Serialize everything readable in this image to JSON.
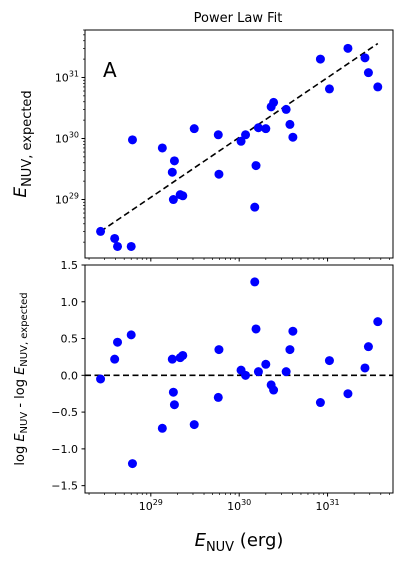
{
  "chart_data": [
    {
      "type": "scatter",
      "title": "Power Law Fit",
      "panel_label": "A",
      "xscale": "log",
      "yscale": "log",
      "xlim": [
        1.8e+28,
        5.5e+31
      ],
      "ylim": [
        1.1e+28,
        6e+31
      ],
      "ylabel_base": "E",
      "ylabel_sub": "NUV, expected",
      "x_ticks": [
        1e+29,
        1e+30,
        1e+31
      ],
      "y_ticks": [
        1e+29,
        1e+30,
        1e+31
      ],
      "marker_color": "#0000ff",
      "line_color": "#000000",
      "fit_line": {
        "style": "dashed",
        "x": [
          2.7e+28,
          3.7e+31
        ],
        "y": [
          3e+28,
          3.6e+31
        ]
      },
      "points": {
        "x": [
          2.7e+28,
          3.9e+28,
          4.2e+28,
          6e+28,
          6.2e+28,
          1.35e+29,
          1.75e+29,
          1.8e+29,
          1.85e+29,
          2.15e+29,
          2.3e+29,
          3.1e+29,
          5.8e+29,
          5.9e+29,
          1.05e+30,
          1.18e+30,
          1.5e+30,
          1.55e+30,
          1.65e+30,
          2e+30,
          2.3e+30,
          2.45e+30,
          3.4e+30,
          3.75e+30,
          4.05e+30,
          8.3e+30,
          1.05e+31,
          1.7e+31,
          2.65e+31,
          2.9e+31,
          3.7e+31
        ],
        "y": [
          3e+28,
          2.3e+28,
          1.7e+28,
          1.7e+28,
          9.5e+29,
          7e+29,
          2.8e+29,
          1e+29,
          4.3e+29,
          1.2e+29,
          1.15e+29,
          1.45e+30,
          1.15e+30,
          2.6e+29,
          9e+29,
          1.15e+30,
          7.5e+28,
          3.6e+29,
          1.5e+30,
          1.45e+30,
          3.3e+30,
          3.9e+30,
          3e+30,
          1.7e+30,
          1.05e+30,
          2e+31,
          6.5e+30,
          3e+31,
          2.1e+31,
          1.2e+31,
          7e+30
        ]
      }
    },
    {
      "type": "scatter",
      "xscale": "log",
      "xlim": [
        1.8e+28,
        5.5e+31
      ],
      "ylim": [
        -1.6,
        1.5
      ],
      "xlabel_base": "E",
      "xlabel_sub": "NUV",
      "xlabel_unit": " (erg)",
      "ylabel_parts": [
        "log ",
        "E",
        "NUV",
        " - log ",
        "E",
        "NUV, expected"
      ],
      "x_ticks": [
        1e+29,
        1e+30,
        1e+31
      ],
      "y_ticks": [
        -1.5,
        -1.0,
        -0.5,
        0.0,
        0.5,
        1.0,
        1.5
      ],
      "y_tick_labels": [
        "−1.5",
        "−1.0",
        "−0.5",
        "0.0",
        "0.5",
        "1.0",
        "1.5"
      ],
      "marker_color": "#0000ff",
      "line_color": "#000000",
      "reference_line": {
        "y": 0.0,
        "style": "dashed"
      },
      "points": {
        "x": [
          2.7e+28,
          3.9e+28,
          4.2e+28,
          6e+28,
          6.2e+28,
          1.35e+29,
          1.75e+29,
          1.8e+29,
          1.85e+29,
          2.15e+29,
          2.3e+29,
          3.1e+29,
          5.8e+29,
          5.9e+29,
          1.05e+30,
          1.18e+30,
          1.5e+30,
          1.55e+30,
          1.65e+30,
          2e+30,
          2.3e+30,
          2.45e+30,
          3.4e+30,
          3.75e+30,
          4.05e+30,
          8.3e+30,
          1.05e+31,
          1.7e+31,
          2.65e+31,
          2.9e+31,
          3.7e+31
        ],
        "y": [
          -0.05,
          0.22,
          0.45,
          0.55,
          -1.2,
          -0.72,
          0.22,
          -0.23,
          -0.4,
          0.24,
          0.27,
          -0.67,
          -0.3,
          0.35,
          0.07,
          0.0,
          1.27,
          0.63,
          0.05,
          0.15,
          -0.13,
          -0.2,
          0.05,
          0.35,
          0.6,
          -0.37,
          0.2,
          -0.25,
          0.1,
          0.39,
          0.73
        ]
      }
    }
  ]
}
